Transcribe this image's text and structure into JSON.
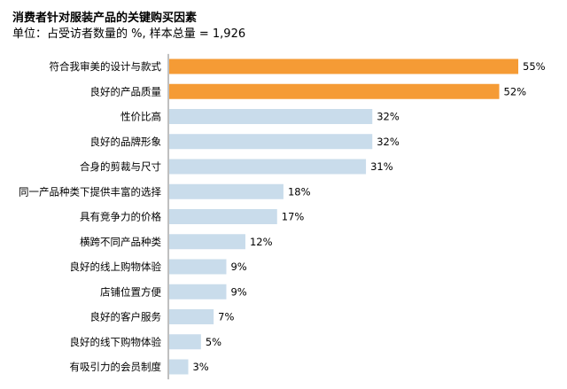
{
  "chart_data": {
    "type": "bar",
    "orientation": "horizontal",
    "title": "消费者针对服装产品的关键购买因素",
    "subtitle": "单位：占受访者数量的 %, 样本总量 = 1,926",
    "categories": [
      "符合我审美的设计与款式",
      "良好的产品质量",
      "性价比高",
      "良好的品牌形象",
      "合身的剪裁与尺寸",
      "同一产品种类下提供丰富的选择",
      "具有竞争力的价格",
      "横跨不同产品种类",
      "良好的线上购物体验",
      "店铺位置方便",
      "良好的客户服务",
      "良好的线下购物体验",
      "有吸引力的会员制度"
    ],
    "values": [
      55,
      52,
      32,
      32,
      31,
      18,
      17,
      12,
      9,
      9,
      7,
      5,
      3
    ],
    "value_labels": [
      "55%",
      "52%",
      "32%",
      "32%",
      "31%",
      "18%",
      "17%",
      "12%",
      "9%",
      "9%",
      "7%",
      "5%",
      "3%"
    ],
    "highlighted": [
      true,
      true,
      false,
      false,
      false,
      false,
      false,
      false,
      false,
      false,
      false,
      false,
      false
    ],
    "highlight_color": "#f59b35",
    "bar_color": "#c9dceb",
    "axis_color": "#808080",
    "xlim": [
      0,
      55
    ],
    "grid": false,
    "legend": "none"
  }
}
